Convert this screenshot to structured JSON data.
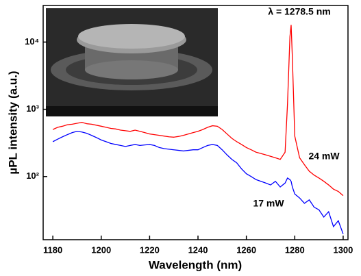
{
  "chart_data": {
    "type": "line",
    "xlabel": "Wavelength (nm)",
    "ylabel": "µPL intensity (a.u.)",
    "annotations": [
      "λ = 1278.5 nm",
      "24 mW",
      "17 mW"
    ],
    "x": [
      1180,
      1182,
      1184,
      1186,
      1188,
      1190,
      1192,
      1194,
      1196,
      1198,
      1200,
      1202,
      1204,
      1206,
      1208,
      1210,
      1212,
      1214,
      1216,
      1218,
      1220,
      1222,
      1224,
      1226,
      1228,
      1230,
      1232,
      1234,
      1236,
      1238,
      1240,
      1242,
      1244,
      1246,
      1248,
      1250,
      1252,
      1254,
      1256,
      1258,
      1260,
      1262,
      1264,
      1266,
      1268,
      1270,
      1272,
      1274,
      1276,
      1277,
      1278,
      1278.5,
      1279,
      1280,
      1282,
      1284,
      1286,
      1288,
      1290,
      1292,
      1294,
      1296,
      1298,
      1300
    ],
    "series": [
      {
        "name": "24 mW",
        "color": "#ff0000",
        "values": [
          500,
          540,
          560,
          590,
          600,
          620,
          640,
          610,
          600,
          580,
          560,
          540,
          520,
          510,
          490,
          480,
          470,
          490,
          470,
          450,
          430,
          420,
          410,
          400,
          390,
          385,
          395,
          410,
          430,
          450,
          470,
          500,
          540,
          570,
          560,
          500,
          430,
          370,
          330,
          300,
          270,
          250,
          230,
          220,
          210,
          200,
          190,
          180,
          230,
          1200,
          12000,
          18000,
          6000,
          400,
          190,
          150,
          120,
          105,
          95,
          85,
          75,
          65,
          60,
          52
        ]
      },
      {
        "name": "17 mW",
        "color": "#0000ff",
        "values": [
          330,
          360,
          390,
          420,
          450,
          470,
          460,
          440,
          410,
          380,
          350,
          330,
          310,
          300,
          290,
          280,
          290,
          300,
          290,
          295,
          300,
          290,
          270,
          260,
          255,
          250,
          245,
          240,
          245,
          250,
          250,
          270,
          290,
          300,
          290,
          250,
          210,
          180,
          160,
          130,
          110,
          100,
          90,
          85,
          80,
          75,
          85,
          70,
          80,
          95,
          90,
          85,
          70,
          55,
          48,
          40,
          45,
          35,
          32,
          25,
          30,
          18,
          22,
          14
        ]
      }
    ],
    "xlim": [
      1176,
      1302
    ],
    "xticks": [
      1180,
      1200,
      1220,
      1240,
      1260,
      1280,
      1300
    ],
    "ylim": [
      11.5,
      35000
    ],
    "log_y": true,
    "yticks": [
      {
        "value": 100,
        "label": "10²"
      },
      {
        "value": 1000,
        "label": "10³"
      },
      {
        "value": 10000,
        "label": "10⁴"
      }
    ]
  }
}
